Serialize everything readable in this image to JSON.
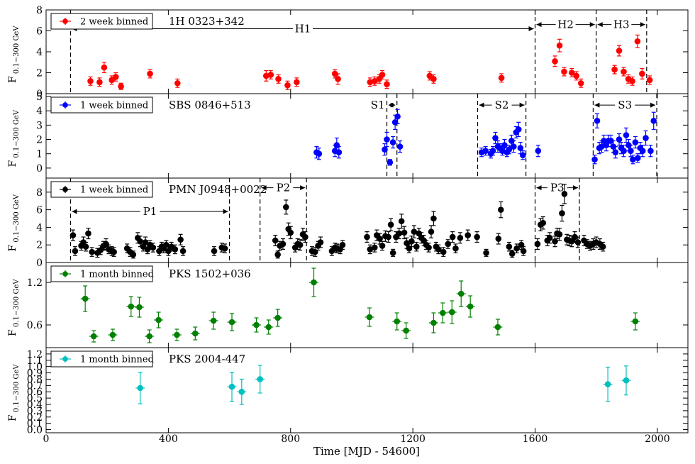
{
  "figure": {
    "xlabel": "Time [MJD - 54600]",
    "xticks": [
      0,
      400,
      800,
      1200,
      1600,
      2000
    ],
    "xlim": [
      0,
      2100
    ]
  },
  "chart_data": [
    {
      "type": "scatter",
      "source": "1H 0323+342",
      "legend": "2 week binned",
      "color": "#ff0000",
      "ylabel": "F",
      "ysub": "0.1−300 GeV",
      "ylim": [
        0,
        8
      ],
      "yticks": [
        0,
        2,
        4,
        6,
        8
      ],
      "xerr": 7,
      "points": [
        [
          145,
          1.2,
          0.4
        ],
        [
          175,
          1.1,
          0.4
        ],
        [
          190,
          2.5,
          0.5
        ],
        [
          215,
          1.3,
          0.4
        ],
        [
          228,
          1.6,
          0.4
        ],
        [
          245,
          0.7,
          0.3
        ],
        [
          340,
          1.9,
          0.4
        ],
        [
          430,
          1.0,
          0.4
        ],
        [
          720,
          1.7,
          0.5
        ],
        [
          735,
          1.8,
          0.4
        ],
        [
          760,
          1.4,
          0.4
        ],
        [
          790,
          0.8,
          0.4
        ],
        [
          820,
          1.1,
          0.4
        ],
        [
          945,
          1.9,
          0.4
        ],
        [
          955,
          1.4,
          0.5
        ],
        [
          1060,
          1.1,
          0.4
        ],
        [
          1075,
          1.2,
          0.4
        ],
        [
          1090,
          1.4,
          0.4
        ],
        [
          1100,
          1.8,
          0.4
        ],
        [
          1115,
          0.9,
          0.4
        ],
        [
          1255,
          1.7,
          0.4
        ],
        [
          1268,
          1.4,
          0.4
        ],
        [
          1490,
          1.5,
          0.4
        ],
        [
          1665,
          3.1,
          0.5
        ],
        [
          1680,
          4.6,
          0.6
        ],
        [
          1695,
          2.1,
          0.4
        ],
        [
          1720,
          2.0,
          0.4
        ],
        [
          1735,
          1.7,
          0.4
        ],
        [
          1750,
          1.0,
          0.4
        ],
        [
          1860,
          2.3,
          0.4
        ],
        [
          1875,
          4.1,
          0.5
        ],
        [
          1890,
          2.1,
          0.4
        ],
        [
          1905,
          1.4,
          0.4
        ],
        [
          1918,
          1.2,
          0.4
        ],
        [
          1935,
          5.0,
          0.6
        ],
        [
          1950,
          1.9,
          0.5
        ],
        [
          1975,
          1.3,
          0.4
        ]
      ],
      "vlines": [
        80,
        1600,
        1800,
        1965
      ],
      "intervals": [
        {
          "label": "H1",
          "x0": 80,
          "x1": 1600,
          "y": 6.2
        },
        {
          "label": "H2",
          "x0": 1600,
          "x1": 1800,
          "y": 6.6
        },
        {
          "label": "H3",
          "x0": 1800,
          "x1": 1965,
          "y": 6.6
        }
      ]
    },
    {
      "type": "scatter",
      "source": "SBS 0846+513",
      "legend": "1 week binned",
      "color": "#0000ff",
      "ylabel": "F",
      "ysub": "0.1−300 GeV",
      "ylim": [
        -0.7,
        5.2
      ],
      "yticks": [
        0,
        1,
        2,
        3,
        4,
        5
      ],
      "xerr": 4,
      "points": [
        [
          885,
          1.1,
          0.4
        ],
        [
          893,
          1.0,
          0.4
        ],
        [
          945,
          1.2,
          0.4
        ],
        [
          951,
          1.6,
          0.5
        ],
        [
          958,
          1.1,
          0.4
        ],
        [
          1108,
          1.3,
          0.4
        ],
        [
          1115,
          2.0,
          0.5
        ],
        [
          1125,
          0.4,
          0.2
        ],
        [
          1135,
          1.8,
          0.4
        ],
        [
          1142,
          3.2,
          0.5
        ],
        [
          1150,
          3.6,
          0.5
        ],
        [
          1158,
          1.5,
          0.4
        ],
        [
          1425,
          1.1,
          0.3
        ],
        [
          1438,
          1.2,
          0.3
        ],
        [
          1455,
          1.0,
          0.3
        ],
        [
          1462,
          1.2,
          0.3
        ],
        [
          1470,
          2.1,
          0.4
        ],
        [
          1478,
          1.5,
          0.4
        ],
        [
          1485,
          1.4,
          0.3
        ],
        [
          1493,
          1.2,
          0.3
        ],
        [
          1500,
          1.6,
          0.4
        ],
        [
          1508,
          1.1,
          0.3
        ],
        [
          1515,
          1.3,
          0.3
        ],
        [
          1523,
          1.9,
          0.4
        ],
        [
          1530,
          1.5,
          0.4
        ],
        [
          1538,
          2.5,
          0.4
        ],
        [
          1546,
          2.7,
          0.5
        ],
        [
          1552,
          1.4,
          0.4
        ],
        [
          1560,
          0.9,
          0.3
        ],
        [
          1610,
          1.2,
          0.4
        ],
        [
          1795,
          0.6,
          0.3
        ],
        [
          1803,
          3.3,
          0.5
        ],
        [
          1810,
          1.4,
          0.4
        ],
        [
          1818,
          1.5,
          0.4
        ],
        [
          1825,
          1.9,
          0.4
        ],
        [
          1833,
          1.6,
          0.4
        ],
        [
          1840,
          1.9,
          0.4
        ],
        [
          1848,
          1.9,
          0.4
        ],
        [
          1856,
          1.5,
          0.4
        ],
        [
          1863,
          1.1,
          0.4
        ],
        [
          1875,
          2.0,
          0.4
        ],
        [
          1882,
          1.4,
          0.4
        ],
        [
          1890,
          1.2,
          0.4
        ],
        [
          1898,
          2.3,
          0.5
        ],
        [
          1906,
          1.6,
          0.4
        ],
        [
          1913,
          1.2,
          0.4
        ],
        [
          1920,
          0.6,
          0.3
        ],
        [
          1928,
          1.8,
          0.4
        ],
        [
          1936,
          0.7,
          0.3
        ],
        [
          1944,
          1.4,
          0.4
        ],
        [
          1952,
          1.2,
          0.4
        ],
        [
          1962,
          2.1,
          0.5
        ],
        [
          1978,
          1.2,
          0.4
        ],
        [
          1988,
          3.3,
          0.6
        ]
      ],
      "vlines": [
        1115,
        1148,
        1412,
        1570,
        1790,
        1998
      ],
      "intervals": [
        {
          "label": "S1",
          "x0": 1115,
          "x1": 1148,
          "y": 4.4
        },
        {
          "label": "S2",
          "x0": 1412,
          "x1": 1570,
          "y": 4.4
        },
        {
          "label": "S3",
          "x0": 1790,
          "x1": 1998,
          "y": 4.4
        }
      ]
    },
    {
      "type": "scatter",
      "source": "PMN J0948+0022",
      "legend": "1 week binned",
      "color": "#000000",
      "ylabel": "F",
      "ysub": "0.1−300 GeV",
      "ylim": [
        0,
        9.6
      ],
      "yticks": [
        0,
        2,
        4,
        6,
        8
      ],
      "xerr": 4,
      "points": [
        [
          88,
          3.1,
          0.6
        ],
        [
          95,
          1.3,
          0.5
        ],
        [
          115,
          1.9,
          0.5
        ],
        [
          122,
          2.3,
          0.6
        ],
        [
          130,
          1.8,
          0.5
        ],
        [
          138,
          3.3,
          0.6
        ],
        [
          150,
          1.2,
          0.5
        ],
        [
          168,
          1.1,
          0.5
        ],
        [
          178,
          1.4,
          0.5
        ],
        [
          188,
          1.9,
          0.5
        ],
        [
          196,
          2.1,
          0.6
        ],
        [
          205,
          1.5,
          0.5
        ],
        [
          215,
          1.3,
          0.5
        ],
        [
          222,
          1.2,
          0.5
        ],
        [
          265,
          1.6,
          0.5
        ],
        [
          275,
          1.2,
          0.5
        ],
        [
          285,
          0.9,
          0.4
        ],
        [
          300,
          2.8,
          0.6
        ],
        [
          308,
          2.4,
          0.6
        ],
        [
          318,
          1.8,
          0.5
        ],
        [
          325,
          2.3,
          0.6
        ],
        [
          332,
          1.5,
          0.5
        ],
        [
          340,
          2.0,
          0.5
        ],
        [
          350,
          1.7,
          0.5
        ],
        [
          370,
          1.3,
          0.5
        ],
        [
          378,
          1.8,
          0.5
        ],
        [
          385,
          1.6,
          0.5
        ],
        [
          393,
          2.0,
          0.5
        ],
        [
          400,
          1.3,
          0.5
        ],
        [
          410,
          1.8,
          0.5
        ],
        [
          422,
          1.5,
          0.5
        ],
        [
          440,
          2.6,
          0.6
        ],
        [
          448,
          1.3,
          0.5
        ],
        [
          550,
          1.3,
          0.5
        ],
        [
          575,
          1.7,
          0.5
        ],
        [
          585,
          1.6,
          0.5
        ],
        [
          750,
          2.5,
          0.6
        ],
        [
          758,
          0.9,
          0.4
        ],
        [
          765,
          1.9,
          0.5
        ],
        [
          775,
          2.1,
          0.6
        ],
        [
          785,
          6.3,
          0.8
        ],
        [
          793,
          3.8,
          0.7
        ],
        [
          800,
          3.4,
          0.7
        ],
        [
          815,
          1.7,
          0.5
        ],
        [
          823,
          2.1,
          0.6
        ],
        [
          831,
          2.0,
          0.6
        ],
        [
          840,
          3.2,
          0.7
        ],
        [
          848,
          2.9,
          0.6
        ],
        [
          870,
          1.3,
          0.5
        ],
        [
          880,
          1.2,
          0.5
        ],
        [
          890,
          1.9,
          0.5
        ],
        [
          898,
          2.3,
          0.6
        ],
        [
          935,
          1.3,
          0.5
        ],
        [
          945,
          1.7,
          0.5
        ],
        [
          952,
          1.6,
          0.5
        ],
        [
          962,
          1.5,
          0.5
        ],
        [
          970,
          2.0,
          0.5
        ],
        [
          1050,
          2.9,
          0.6
        ],
        [
          1060,
          1.5,
          0.5
        ],
        [
          1075,
          1.7,
          0.5
        ],
        [
          1082,
          3.1,
          0.6
        ],
        [
          1092,
          2.7,
          0.6
        ],
        [
          1100,
          1.9,
          0.5
        ],
        [
          1110,
          3.0,
          0.6
        ],
        [
          1120,
          2.9,
          0.6
        ],
        [
          1128,
          4.3,
          0.7
        ],
        [
          1135,
          1.1,
          0.4
        ],
        [
          1145,
          2.9,
          0.6
        ],
        [
          1155,
          3.3,
          0.6
        ],
        [
          1163,
          4.7,
          0.8
        ],
        [
          1172,
          3.4,
          0.7
        ],
        [
          1180,
          2.2,
          0.6
        ],
        [
          1188,
          1.6,
          0.5
        ],
        [
          1196,
          2.4,
          0.6
        ],
        [
          1204,
          3.5,
          0.7
        ],
        [
          1212,
          1.8,
          0.5
        ],
        [
          1220,
          3.3,
          0.6
        ],
        [
          1228,
          2.8,
          0.6
        ],
        [
          1236,
          2.5,
          0.6
        ],
        [
          1244,
          2.0,
          0.5
        ],
        [
          1252,
          1.7,
          0.5
        ],
        [
          1260,
          3.5,
          0.7
        ],
        [
          1268,
          5.0,
          0.8
        ],
        [
          1276,
          1.8,
          0.5
        ],
        [
          1284,
          1.5,
          0.5
        ],
        [
          1300,
          1.2,
          0.5
        ],
        [
          1315,
          2.1,
          0.5
        ],
        [
          1330,
          2.9,
          0.6
        ],
        [
          1340,
          1.6,
          0.5
        ],
        [
          1355,
          2.8,
          0.6
        ],
        [
          1380,
          3.1,
          0.6
        ],
        [
          1410,
          2.9,
          0.6
        ],
        [
          1440,
          1.1,
          0.4
        ],
        [
          1480,
          2.7,
          0.6
        ],
        [
          1488,
          6.0,
          0.9
        ],
        [
          1515,
          1.8,
          0.5
        ],
        [
          1525,
          1.0,
          0.4
        ],
        [
          1540,
          1.6,
          0.5
        ],
        [
          1555,
          2.0,
          0.5
        ],
        [
          1562,
          1.3,
          0.5
        ],
        [
          1608,
          2.1,
          0.6
        ],
        [
          1618,
          4.3,
          0.7
        ],
        [
          1626,
          4.5,
          0.7
        ],
        [
          1640,
          2.5,
          0.6
        ],
        [
          1648,
          2.8,
          0.6
        ],
        [
          1665,
          2.4,
          0.6
        ],
        [
          1672,
          3.3,
          0.6
        ],
        [
          1680,
          3.2,
          0.7
        ],
        [
          1688,
          5.6,
          0.9
        ],
        [
          1696,
          7.8,
          1.1
        ],
        [
          1704,
          2.6,
          0.6
        ],
        [
          1712,
          2.5,
          0.6
        ],
        [
          1720,
          2.4,
          0.6
        ],
        [
          1730,
          2.9,
          0.6
        ],
        [
          1740,
          2.3,
          0.6
        ],
        [
          1760,
          2.5,
          0.6
        ],
        [
          1770,
          2.1,
          0.5
        ],
        [
          1780,
          1.9,
          0.5
        ],
        [
          1790,
          2.1,
          0.6
        ],
        [
          1800,
          2.3,
          0.6
        ],
        [
          1812,
          2.1,
          0.6
        ],
        [
          1822,
          1.8,
          0.5
        ]
      ],
      "vlines": [
        80,
        600,
        700,
        852,
        1600,
        1745
      ],
      "intervals": [
        {
          "label": "P1",
          "x0": 80,
          "x1": 600,
          "y": 5.8
        },
        {
          "label": "P2",
          "x0": 700,
          "x1": 852,
          "y": 8.5
        },
        {
          "label": "P3",
          "x0": 1600,
          "x1": 1745,
          "y": 8.5
        }
      ]
    },
    {
      "type": "scatter",
      "source": "PKS 1502+036",
      "legend": "1 month binned",
      "color": "#008000",
      "ylabel": "F",
      "ysub": "0.1−300 GeV",
      "ylim": [
        0.28,
        1.48
      ],
      "yticks": [
        0.6,
        1.2
      ],
      "xerr": 15,
      "points": [
        [
          128,
          0.97,
          0.18
        ],
        [
          156,
          0.44,
          0.08
        ],
        [
          218,
          0.46,
          0.08
        ],
        [
          278,
          0.86,
          0.14
        ],
        [
          305,
          0.85,
          0.14
        ],
        [
          338,
          0.44,
          0.09
        ],
        [
          368,
          0.67,
          0.11
        ],
        [
          428,
          0.46,
          0.08
        ],
        [
          488,
          0.48,
          0.09
        ],
        [
          548,
          0.66,
          0.12
        ],
        [
          608,
          0.64,
          0.12
        ],
        [
          688,
          0.6,
          0.1
        ],
        [
          728,
          0.57,
          0.1
        ],
        [
          758,
          0.7,
          0.12
        ],
        [
          876,
          1.2,
          0.2
        ],
        [
          1058,
          0.71,
          0.13
        ],
        [
          1148,
          0.65,
          0.12
        ],
        [
          1178,
          0.52,
          0.11
        ],
        [
          1268,
          0.63,
          0.14
        ],
        [
          1298,
          0.77,
          0.14
        ],
        [
          1328,
          0.78,
          0.16
        ],
        [
          1358,
          1.04,
          0.18
        ],
        [
          1388,
          0.86,
          0.15
        ],
        [
          1478,
          0.57,
          0.11
        ],
        [
          1928,
          0.65,
          0.12
        ]
      ]
    },
    {
      "type": "scatter",
      "source": "PKS 2004-447",
      "legend": "1 month binned",
      "color": "#00bfbf",
      "ylabel": "F",
      "ysub": "0.1−300 GeV",
      "ylim": [
        -0.05,
        1.3
      ],
      "yticks": [
        0.0,
        0.1,
        0.2,
        0.3,
        0.4,
        0.5,
        0.6,
        0.7,
        0.8,
        0.9,
        1.0,
        1.1,
        1.2
      ],
      "xerr": 15,
      "points": [
        [
          308,
          0.66,
          0.25
        ],
        [
          608,
          0.68,
          0.23
        ],
        [
          640,
          0.6,
          0.2
        ],
        [
          700,
          0.8,
          0.22
        ],
        [
          1838,
          0.72,
          0.27
        ],
        [
          1898,
          0.78,
          0.23
        ]
      ]
    }
  ]
}
